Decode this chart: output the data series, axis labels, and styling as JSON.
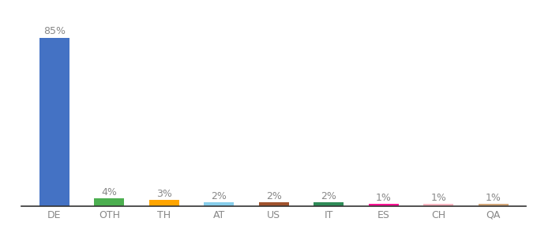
{
  "categories": [
    "DE",
    "OTH",
    "TH",
    "AT",
    "US",
    "IT",
    "ES",
    "CH",
    "QA"
  ],
  "values": [
    85,
    4,
    3,
    2,
    2,
    2,
    1,
    1,
    1
  ],
  "bar_colors": [
    "#4472C4",
    "#4CAF50",
    "#FFA500",
    "#87CEEB",
    "#A0522D",
    "#2E8B57",
    "#FF1493",
    "#FFB6C1",
    "#D2A679"
  ],
  "labels": [
    "85%",
    "4%",
    "3%",
    "2%",
    "2%",
    "2%",
    "1%",
    "1%",
    "1%"
  ],
  "background_color": "#ffffff",
  "label_fontsize": 9,
  "tick_fontsize": 9,
  "label_color": "#888888",
  "ylim": [
    0,
    92
  ],
  "bar_width": 0.55
}
